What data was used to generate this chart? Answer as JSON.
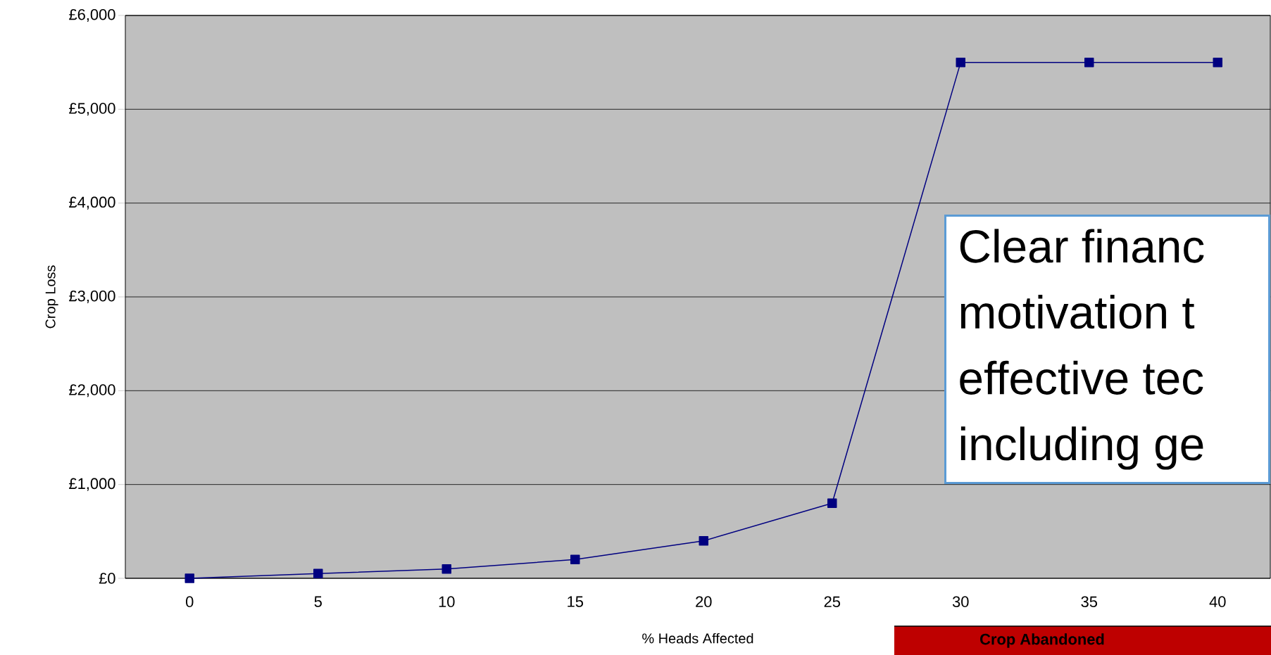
{
  "chart_data": {
    "type": "line",
    "xlabel": "% Heads Affected",
    "ylabel": "Crop Loss",
    "categories": [
      "0",
      "5",
      "10",
      "15",
      "20",
      "25",
      "30",
      "35",
      "40"
    ],
    "series": [
      {
        "color": "#000080",
        "values": [
          0,
          50,
          100,
          200,
          400,
          800,
          5500,
          5500,
          5500
        ]
      }
    ],
    "ylim": [
      0,
      6000
    ],
    "yticks": [
      {
        "value": 0,
        "label": "£0"
      },
      {
        "value": 1000,
        "label": "£1,000"
      },
      {
        "value": 2000,
        "label": "£2,000"
      },
      {
        "value": 3000,
        "label": "£3,000"
      },
      {
        "value": 4000,
        "label": "£4,000"
      },
      {
        "value": 5000,
        "label": "£5,000"
      },
      {
        "value": 6000,
        "label": "£6,000"
      }
    ],
    "grid": "y",
    "marker": "square",
    "line_style": "solid",
    "annotations": [
      "Clear financ",
      "motivation t",
      "effective tec",
      "including ge",
      "Crop Abandoned"
    ]
  }
}
